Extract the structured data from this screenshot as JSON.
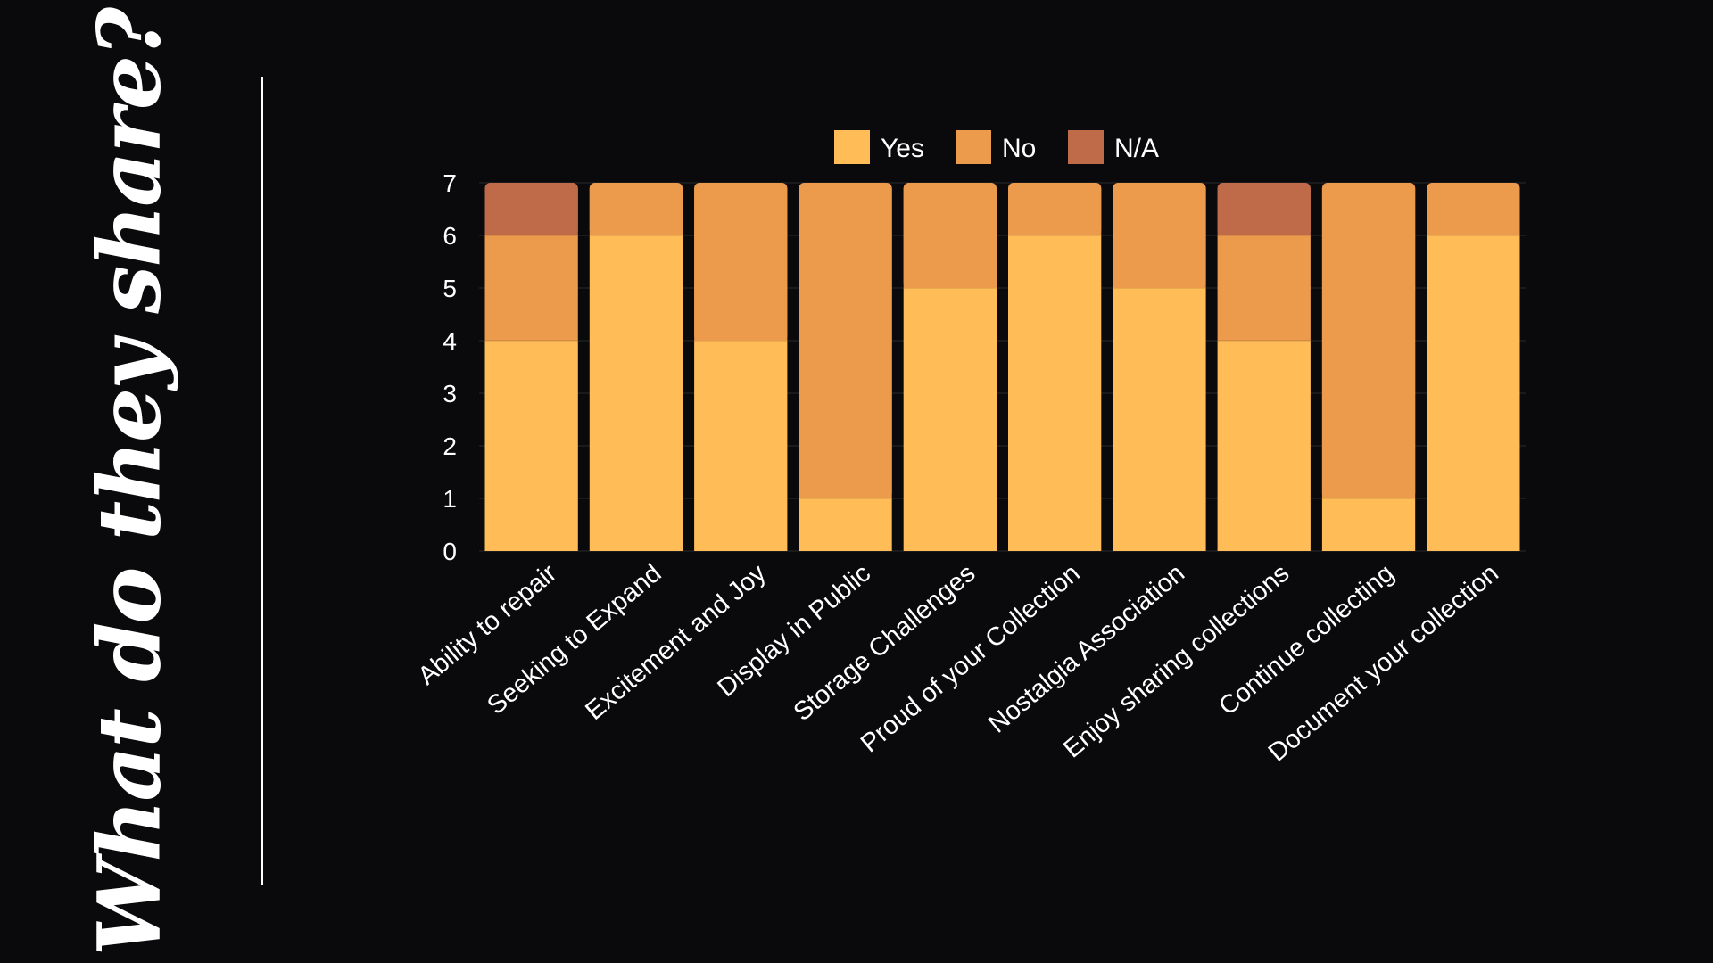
{
  "title": "What do they share?",
  "colors": {
    "background": "#0a0a0c",
    "yes": "#ffbc57",
    "no": "#ec9a4c",
    "na": "#bf6b4a",
    "text": "#ffffff"
  },
  "chart_data": {
    "type": "bar",
    "stacked": true,
    "title": "",
    "xlabel": "",
    "ylabel": "",
    "ylim": [
      0,
      7
    ],
    "yticks": [
      0,
      1,
      2,
      3,
      4,
      5,
      6,
      7
    ],
    "legend_position": "top",
    "categories": [
      "Ability to repair",
      "Seeking to Expand",
      "Excitement and Joy",
      "Display in Public",
      "Storage Challenges",
      "Proud of your Collection",
      "Nostalgia Association",
      "Enjoy sharing collections",
      "Continue collecting",
      "Document your collection"
    ],
    "series": [
      {
        "name": "Yes",
        "color": "#ffbc57",
        "values": [
          4,
          6,
          4,
          1,
          5,
          6,
          5,
          4,
          1,
          6
        ]
      },
      {
        "name": "No",
        "color": "#ec9a4c",
        "values": [
          2,
          1,
          3,
          6,
          2,
          1,
          2,
          2,
          6,
          1
        ]
      },
      {
        "name": "N/A",
        "color": "#bf6b4a",
        "values": [
          1,
          0,
          0,
          0,
          0,
          0,
          0,
          1,
          0,
          0
        ]
      }
    ]
  }
}
